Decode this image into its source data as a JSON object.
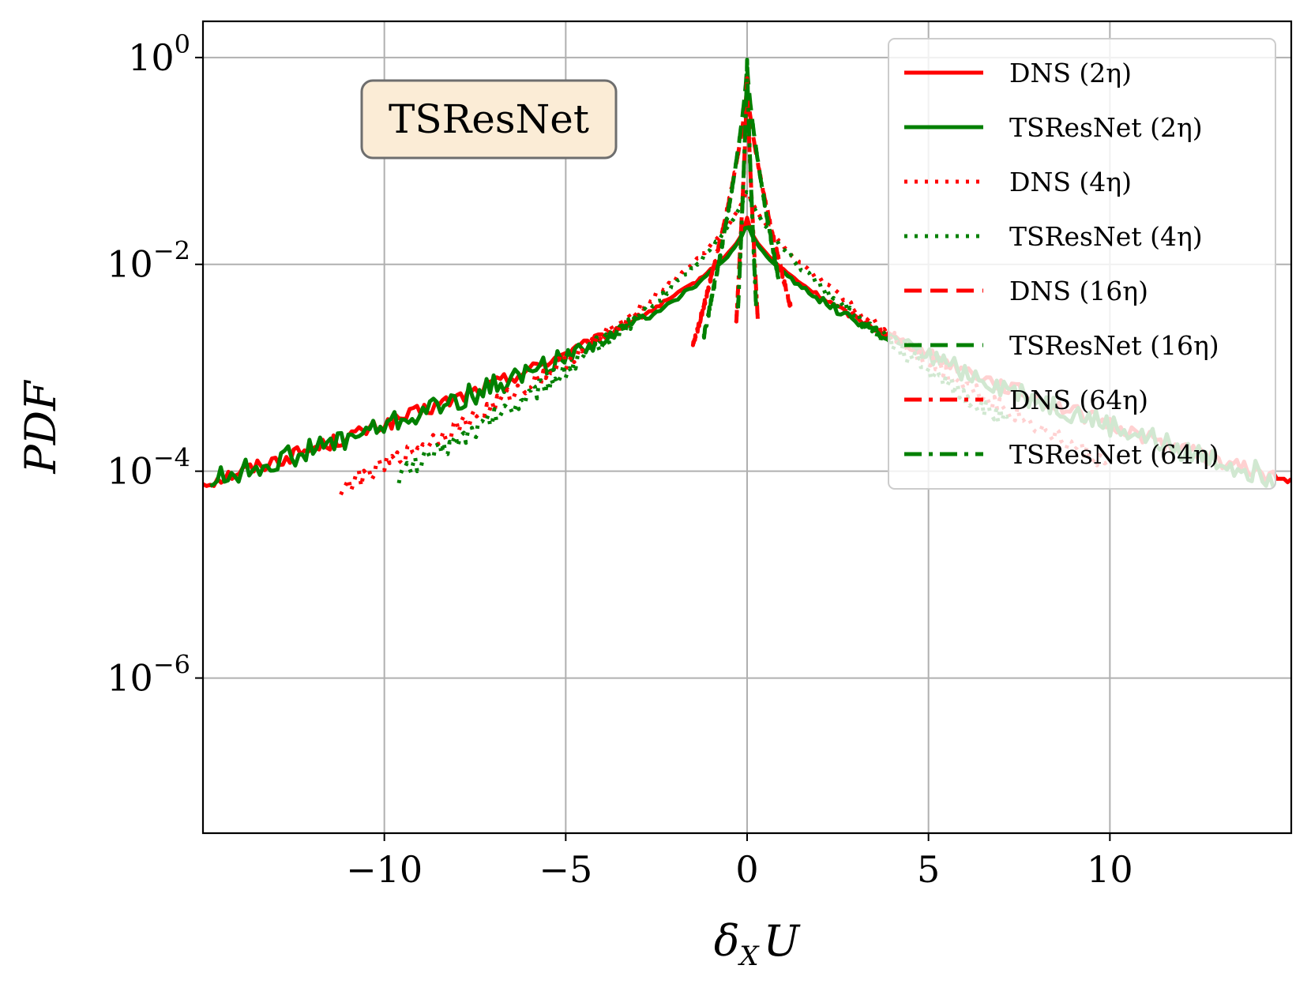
{
  "chart_data": {
    "type": "line",
    "yscale": "log",
    "xlabel": "δ_X U",
    "ylabel": "PDF",
    "xlim": [
      -15,
      15
    ],
    "ylim_exp": [
      -7.5,
      0.35
    ],
    "xticks": [
      -10,
      -5,
      0,
      5,
      10
    ],
    "xtick_labels": [
      "−10",
      "−5",
      "0",
      "5",
      "10"
    ],
    "yticks_exp": [
      0,
      -2,
      -4,
      -6
    ],
    "ytick_labels": [
      {
        "base": "10",
        "exp": "0"
      },
      {
        "base": "10",
        "exp": "−2"
      },
      {
        "base": "10",
        "exp": "−4"
      },
      {
        "base": "10",
        "exp": "−6"
      }
    ],
    "grid": true,
    "legend_position": "top-right",
    "annotation": "TSResNet",
    "colors": {
      "DNS": "#ff0000",
      "TSResNet": "#008000",
      "annotation_bg": "#fbecd6",
      "grid": "#b0b0b0"
    },
    "series": [
      {
        "name": "DNS (2η)",
        "color": "#ff0000",
        "dash": "solid",
        "peak_exp": -1.55,
        "scale": 3.45,
        "alpha": 0.58,
        "xmin": -15,
        "xmax": 15,
        "noise": 0.07
      },
      {
        "name": "TSResNet (2η)",
        "color": "#008000",
        "dash": "solid",
        "peak_exp": -1.55,
        "scale": 3.3,
        "alpha": 0.56,
        "xmin": -14.8,
        "xmax": 14.5,
        "noise": 0.11
      },
      {
        "name": "DNS (4η)",
        "color": "#ff0000",
        "dash": "dotted",
        "peak_exp": -1.25,
        "scale": 2.5,
        "alpha": 0.66,
        "xmin": -11.2,
        "xmax": 10.0,
        "noise": 0.08
      },
      {
        "name": "TSResNet (4η)",
        "color": "#008000",
        "dash": "dotted",
        "peak_exp": -1.25,
        "scale": 2.3,
        "alpha": 0.66,
        "xmin": -9.6,
        "xmax": 7.2,
        "noise": 0.09
      },
      {
        "name": "DNS (16η)",
        "color": "#ff0000",
        "dash": "dashed",
        "peak_exp": -0.25,
        "scale": 0.45,
        "alpha": 0.72,
        "xmin": -1.5,
        "xmax": 1.2,
        "noise": 0.03
      },
      {
        "name": "TSResNet (16η)",
        "color": "#008000",
        "dash": "dashed",
        "peak_exp": -0.05,
        "scale": 0.34,
        "alpha": 0.72,
        "xmin": -1.2,
        "xmax": 0.9,
        "noise": 0.03
      },
      {
        "name": "DNS (64η)",
        "color": "#ff0000",
        "dash": "dashdot",
        "peak_exp": -0.2,
        "scale": 0.11,
        "alpha": 0.8,
        "xmin": -0.3,
        "xmax": 0.3,
        "noise": 0.02
      },
      {
        "name": "TSResNet (64η)",
        "color": "#008000",
        "dash": "dashdot",
        "peak_exp": -0.02,
        "scale": 0.09,
        "alpha": 0.8,
        "xmin": -0.25,
        "xmax": 0.25,
        "noise": 0.02
      }
    ],
    "legend": [
      "DNS (2η)",
      "TSResNet (2η)",
      "DNS (4η)",
      "TSResNet (4η)",
      "DNS (16η)",
      "TSResNet (16η)",
      "DNS (64η)",
      "TSResNet (64η)"
    ]
  }
}
